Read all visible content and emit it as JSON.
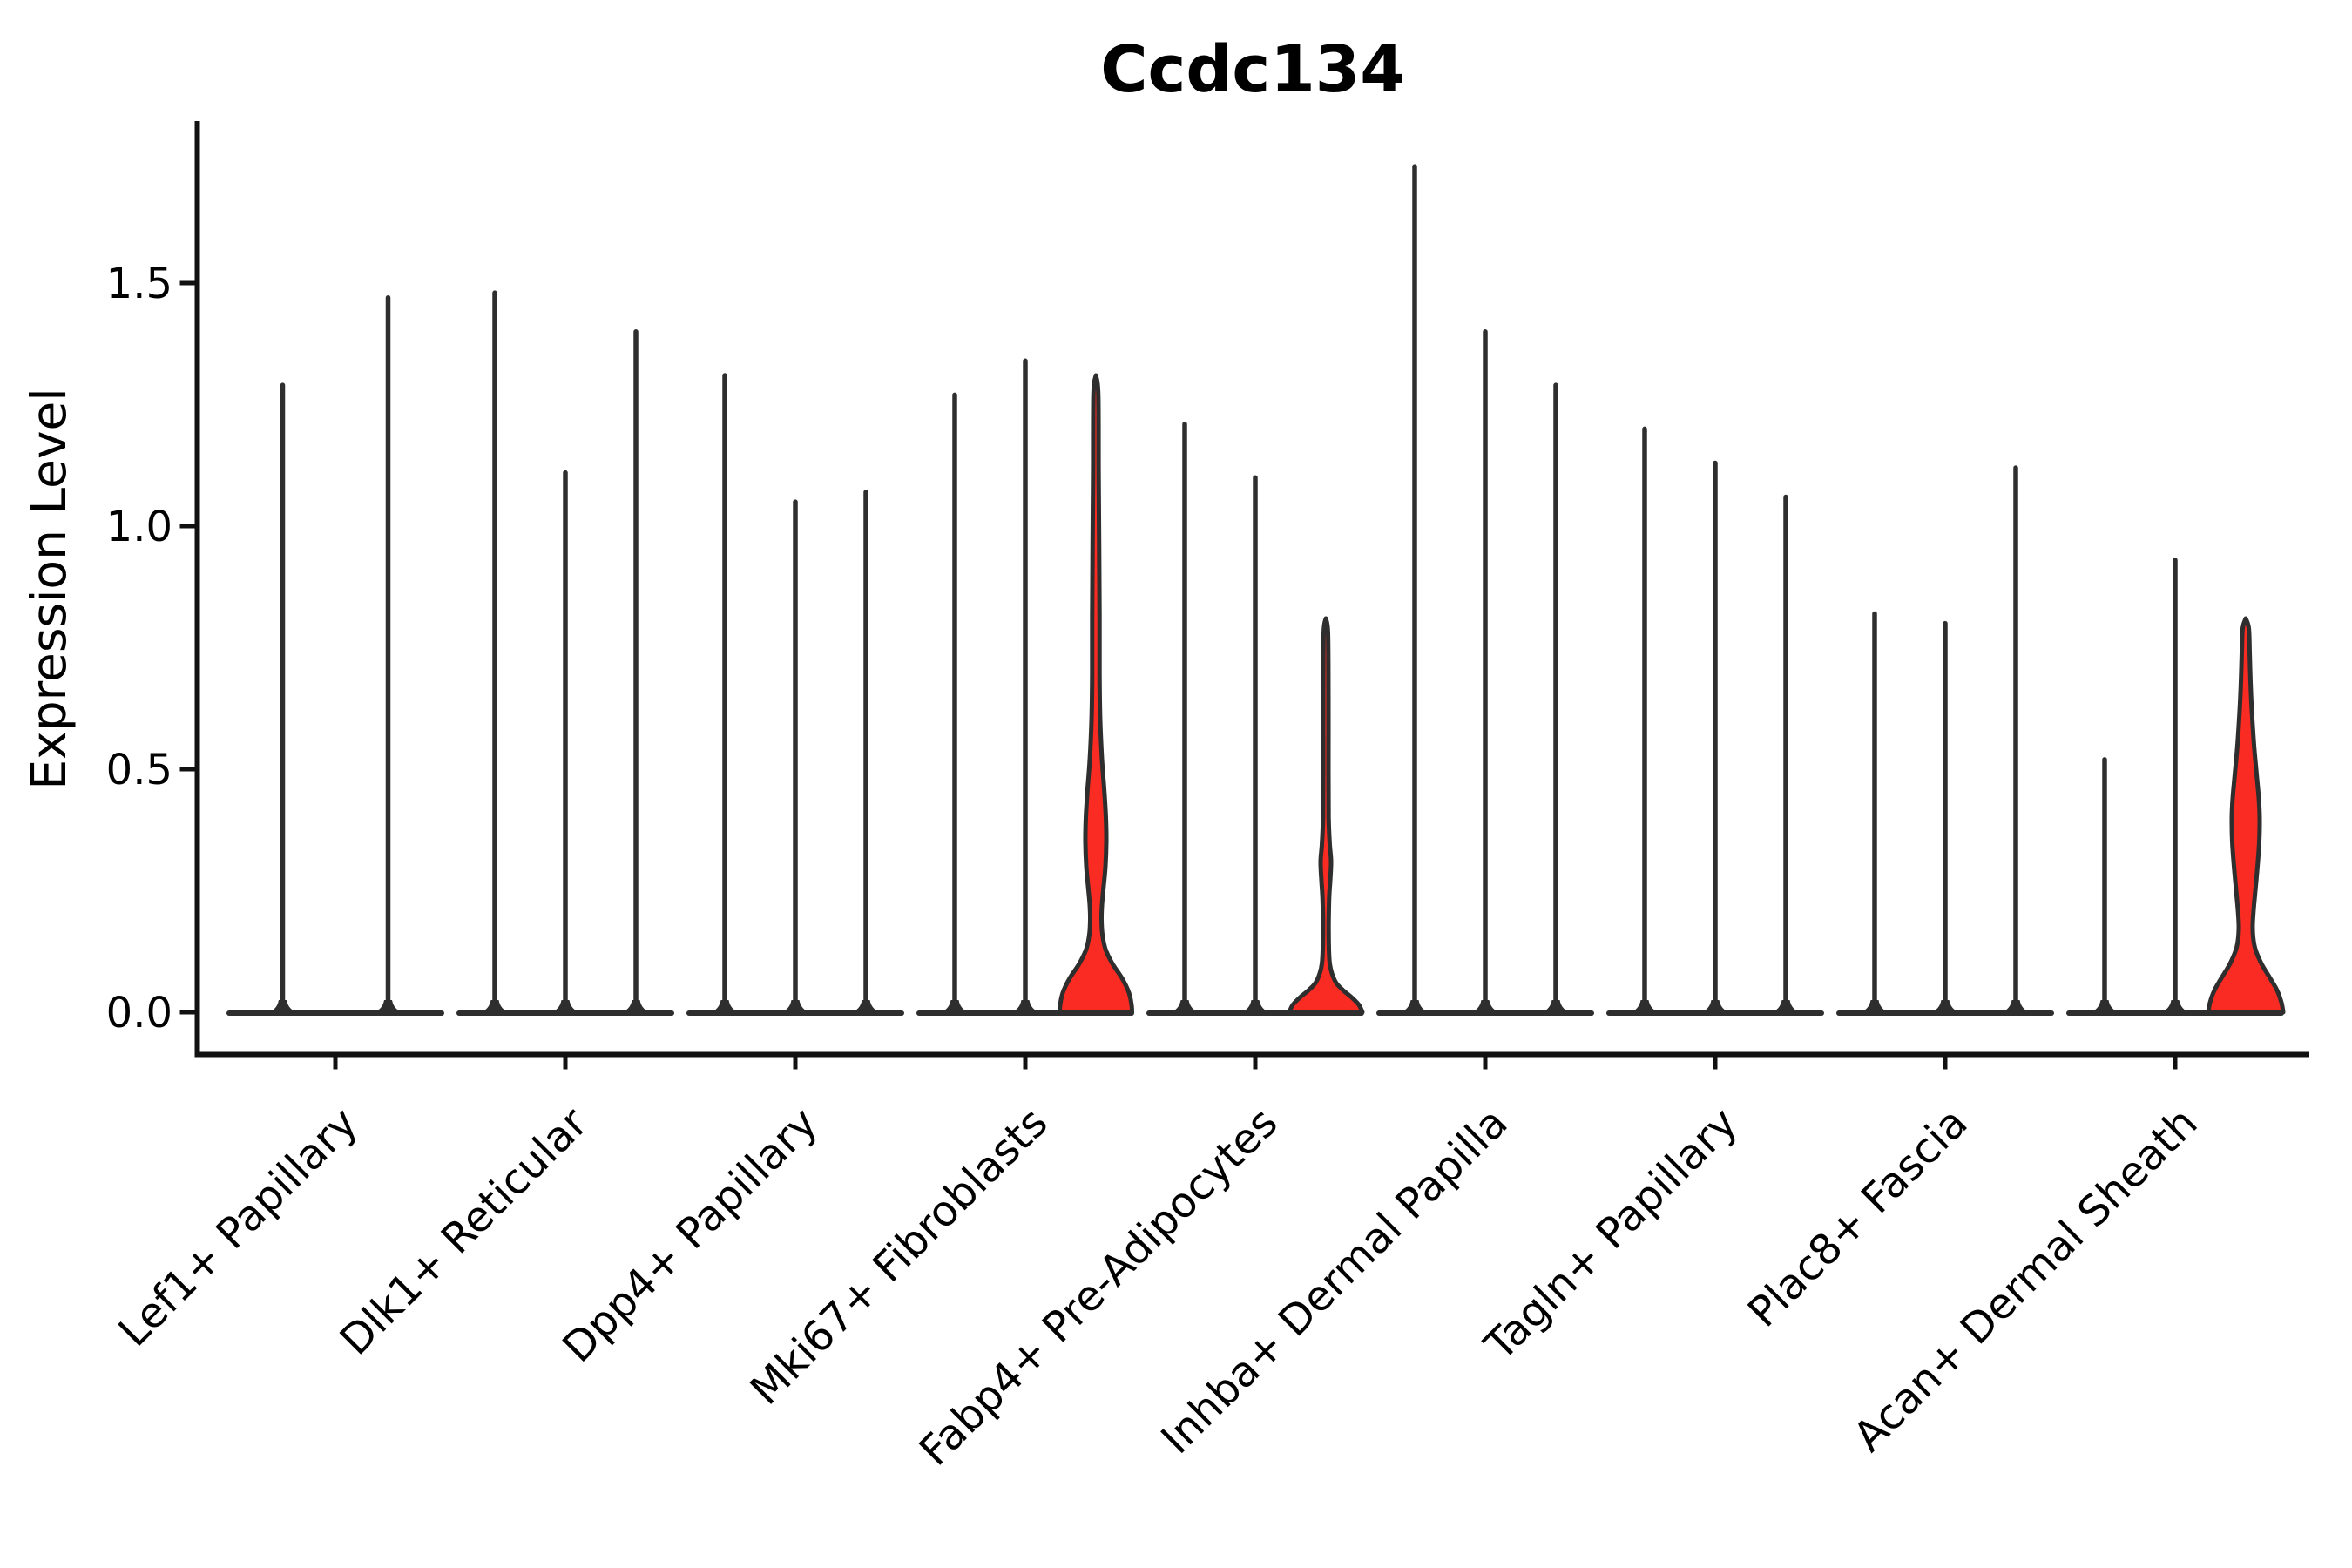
{
  "figure": {
    "title": "Ccdc134",
    "ylabel": "Expression Level",
    "background": "#ffffff"
  },
  "colors": {
    "axis": "#111111",
    "violin_line": "#2e2e2e",
    "violin_fill": "#f92b22",
    "text": "#000000"
  },
  "chart_data": {
    "type": "violin",
    "title": "Ccdc134",
    "xlabel": "",
    "ylabel": "Expression Level",
    "ylim": [
      -0.09,
      1.83
    ],
    "yticks": [
      0.0,
      0.5,
      1.0,
      1.5
    ],
    "ytick_labels": [
      "0.0",
      "0.5",
      "1.0",
      "1.5"
    ],
    "grid": false,
    "legend": "none",
    "categories": [
      "Lef1+ Papillary",
      "Dlk1+ Reticular",
      "Dpp4+ Papillary",
      "Mki67+ Fibroblasts",
      "Fabp4+ Pre-Adipocytes",
      "Inhba+ Dermal Papilla",
      "Tagln+ Papillary",
      "Plac8+ Fascia",
      "Acan+ Dermal Sheath"
    ],
    "groups": [
      {
        "category": "Lef1+ Papillary",
        "violins": [
          {
            "max_expression": 1.29,
            "filled": false
          },
          {
            "max_expression": 1.47,
            "filled": false
          }
        ]
      },
      {
        "category": "Dlk1+ Reticular",
        "violins": [
          {
            "max_expression": 1.48,
            "filled": false
          },
          {
            "max_expression": 1.11,
            "filled": false
          },
          {
            "max_expression": 1.4,
            "filled": false
          }
        ]
      },
      {
        "category": "Dpp4+ Papillary",
        "violins": [
          {
            "max_expression": 1.31,
            "filled": false
          },
          {
            "max_expression": 1.05,
            "filled": false
          },
          {
            "max_expression": 1.07,
            "filled": false
          }
        ]
      },
      {
        "category": "Mki67+ Fibroblasts",
        "violins": [
          {
            "max_expression": 1.27,
            "filled": false
          },
          {
            "max_expression": 1.34,
            "filled": false
          },
          {
            "max_expression": 1.31,
            "filled": true,
            "width_profile": [
              [
                1.31,
                0
              ],
              [
                1.27,
                2.8
              ],
              [
                1.1,
                3.2
              ],
              [
                0.95,
                3.8
              ],
              [
                0.82,
                4.2
              ],
              [
                0.7,
                4.2
              ],
              [
                0.6,
                5
              ],
              [
                0.52,
                7
              ],
              [
                0.46,
                9.5
              ],
              [
                0.4,
                11.5
              ],
              [
                0.35,
                12
              ],
              [
                0.3,
                11
              ],
              [
                0.26,
                9
              ],
              [
                0.22,
                7
              ],
              [
                0.19,
                6.5
              ],
              [
                0.16,
                7.5
              ],
              [
                0.13,
                11
              ],
              [
                0.1,
                19
              ],
              [
                0.07,
                30
              ],
              [
                0.04,
                38
              ],
              [
                0.015,
                41
              ],
              [
                0,
                41.5
              ]
            ]
          }
        ]
      },
      {
        "category": "Fabp4+ Pre-Adipocytes",
        "violins": [
          {
            "max_expression": 1.21,
            "filled": false
          },
          {
            "max_expression": 1.1,
            "filled": false
          },
          {
            "max_expression": 0.81,
            "filled": true,
            "width_profile": [
              [
                0.81,
                0
              ],
              [
                0.78,
                2.5
              ],
              [
                0.65,
                3
              ],
              [
                0.5,
                3
              ],
              [
                0.4,
                3.2
              ],
              [
                0.345,
                4.5
              ],
              [
                0.31,
                6
              ],
              [
                0.27,
                5
              ],
              [
                0.235,
                3.8
              ],
              [
                0.18,
                3.2
              ],
              [
                0.13,
                3.5
              ],
              [
                0.1,
                4.5
              ],
              [
                0.08,
                7
              ],
              [
                0.06,
                12
              ],
              [
                0.045,
                20
              ],
              [
                0.03,
                30
              ],
              [
                0.015,
                38
              ],
              [
                0,
                42
              ]
            ]
          }
        ]
      },
      {
        "category": "Inhba+ Dermal Papilla",
        "violins": [
          {
            "max_expression": 1.74,
            "filled": false
          },
          {
            "max_expression": 1.4,
            "filled": false
          },
          {
            "max_expression": 1.29,
            "filled": false
          }
        ]
      },
      {
        "category": "Tagln+ Papillary",
        "violins": [
          {
            "max_expression": 1.2,
            "filled": false
          },
          {
            "max_expression": 1.13,
            "filled": false
          },
          {
            "max_expression": 1.06,
            "filled": false
          }
        ]
      },
      {
        "category": "Plac8+ Fascia",
        "violins": [
          {
            "max_expression": 0.82,
            "filled": false
          },
          {
            "max_expression": 0.8,
            "filled": false
          },
          {
            "max_expression": 1.12,
            "filled": false
          }
        ]
      },
      {
        "category": "Acan+ Dermal Sheath",
        "violins": [
          {
            "max_expression": 0.52,
            "filled": false
          },
          {
            "max_expression": 0.93,
            "filled": false
          },
          {
            "max_expression": 0.81,
            "filled": true,
            "width_profile": [
              [
                0.81,
                0
              ],
              [
                0.79,
                3.5
              ],
              [
                0.74,
                4.5
              ],
              [
                0.68,
                5.5
              ],
              [
                0.62,
                7
              ],
              [
                0.55,
                9.5
              ],
              [
                0.49,
                12.5
              ],
              [
                0.44,
                15
              ],
              [
                0.4,
                16
              ],
              [
                0.35,
                15.5
              ],
              [
                0.3,
                13.5
              ],
              [
                0.25,
                11
              ],
              [
                0.21,
                9
              ],
              [
                0.18,
                8
              ],
              [
                0.155,
                8.5
              ],
              [
                0.13,
                11
              ],
              [
                0.1,
                18
              ],
              [
                0.07,
                28
              ],
              [
                0.045,
                36
              ],
              [
                0.02,
                41
              ],
              [
                0,
                43
              ]
            ]
          }
        ]
      }
    ]
  }
}
